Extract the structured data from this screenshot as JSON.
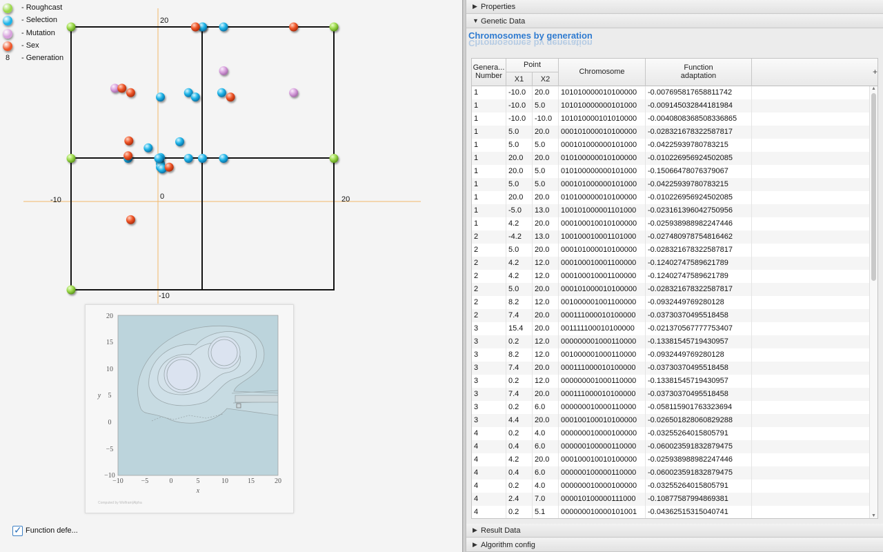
{
  "legend": [
    {
      "label": "- Roughcast",
      "swatch": "roughcast"
    },
    {
      "label": "- Selection",
      "swatch": "selection"
    },
    {
      "label": "- Mutation",
      "swatch": "mutation"
    },
    {
      "label": "- Sex",
      "swatch": "sex"
    },
    {
      "label": "- Generation",
      "number": "8"
    }
  ],
  "colors": {
    "roughcast": "#9bd84a",
    "selection": "#1eb4e8",
    "mutation": "#d7a0dc",
    "sex": "#ee5528",
    "axis": "#f2b86a",
    "grid": "#111111"
  },
  "plot": {
    "axis_labels": {
      "top": "20",
      "left": "-10",
      "origin": "0",
      "right": "20",
      "bottom": "-10"
    },
    "roughcast_points": [
      [
        -10,
        20
      ],
      [
        -10,
        5
      ],
      [
        -10,
        -10
      ],
      [
        20,
        5
      ],
      [
        20,
        20
      ]
    ],
    "selection_points": [
      [
        5,
        20
      ],
      [
        7.4,
        20
      ],
      [
        5,
        20
      ],
      [
        0.2,
        12
      ],
      [
        3.4,
        12.5
      ],
      [
        4.2,
        12
      ],
      [
        7.2,
        12.5
      ],
      [
        0.2,
        4.4
      ],
      [
        -1.2,
        6.2
      ],
      [
        2.4,
        6.9
      ],
      [
        0.2,
        5.1
      ],
      [
        0.2,
        4
      ],
      [
        -3.5,
        5
      ],
      [
        3.4,
        5
      ],
      [
        5,
        5
      ],
      [
        7.4,
        5
      ],
      [
        0.4,
        3.8
      ],
      [
        0,
        5
      ]
    ],
    "mutation_points": [
      [
        7.4,
        15
      ],
      [
        -5,
        13
      ],
      [
        15.4,
        12.5
      ]
    ],
    "sex_points": [
      [
        4.2,
        20
      ],
      [
        15.4,
        20
      ],
      [
        -4.2,
        13
      ],
      [
        -3.2,
        12.5
      ],
      [
        8.2,
        12
      ],
      [
        -3.4,
        7
      ],
      [
        -3.5,
        5.3
      ],
      [
        1.2,
        4
      ],
      [
        -3.2,
        -2
      ]
    ]
  },
  "contour": {
    "ticks_y": [
      "20",
      "15",
      "10",
      "5",
      "0",
      "−5",
      "−10"
    ],
    "ticks_x": [
      "−10",
      "−5",
      "0",
      "5",
      "10",
      "15",
      "20"
    ],
    "xlabel": "x",
    "ylabel": "y",
    "footnote": "Computed by Wolfram|Alpha"
  },
  "checkbox": {
    "label": "Function defe...",
    "checked": true
  },
  "sections": {
    "properties": "Properties",
    "genetic_data": "Genetic Data",
    "result_data": "Result Data",
    "algorithm_config": "Algorithm config"
  },
  "chart_title": "Chromosomes by generation",
  "table": {
    "headers": {
      "generation": [
        "Genera...",
        "Number"
      ],
      "point": "Point",
      "x1": "X1",
      "x2": "X2",
      "chromosome": "Chromosome",
      "function": [
        "Function",
        "adaptation"
      ]
    },
    "rows": [
      [
        "1",
        "-10.0",
        "20.0",
        "101010000010100000",
        "-0.007695817658811742"
      ],
      [
        "1",
        "-10.0",
        "5.0",
        "101010000000101000",
        "-0.009145032844181984"
      ],
      [
        "1",
        "-10.0",
        "-10.0",
        "101010000101010000",
        "-0.0040808368508336865"
      ],
      [
        "1",
        "5.0",
        "20.0",
        "000101000010100000",
        "-0.028321678322587817"
      ],
      [
        "1",
        "5.0",
        "5.0",
        "000101000000101000",
        "-0.04225939780783215"
      ],
      [
        "1",
        "20.0",
        "20.0",
        "010100000010100000",
        "-0.010226956924502085"
      ],
      [
        "1",
        "20.0",
        "5.0",
        "010100000000101000",
        "-0.15066478076379067"
      ],
      [
        "1",
        "5.0",
        "5.0",
        "000101000000101000",
        "-0.04225939780783215"
      ],
      [
        "1",
        "20.0",
        "20.0",
        "010100000010100000",
        "-0.010226956924502085"
      ],
      [
        "1",
        "-5.0",
        "13.0",
        "100101000001101000",
        "-0.023161396042750956"
      ],
      [
        "1",
        "4.2",
        "20.0",
        "000100010010100000",
        "-0.025938988982247446"
      ],
      [
        "2",
        "-4.2",
        "13.0",
        "100100010001101000",
        "-0.027480978754816462"
      ],
      [
        "2",
        "5.0",
        "20.0",
        "000101000010100000",
        "-0.028321678322587817"
      ],
      [
        "2",
        "4.2",
        "12.0",
        "000100010001100000",
        "-0.12402747589621789"
      ],
      [
        "2",
        "4.2",
        "12.0",
        "000100010001100000",
        "-0.12402747589621789"
      ],
      [
        "2",
        "5.0",
        "20.0",
        "000101000010100000",
        "-0.028321678322587817"
      ],
      [
        "2",
        "8.2",
        "12.0",
        "001000001001100000",
        "-0.0932449769280128"
      ],
      [
        "2",
        "7.4",
        "20.0",
        "000111000010100000",
        "-0.03730370495518458"
      ],
      [
        "3",
        "15.4",
        "20.0",
        "001111100010100000",
        "-0.021370567777753407"
      ],
      [
        "3",
        "0.2",
        "12.0",
        "000000001000110000",
        "-0.13381545719430957"
      ],
      [
        "3",
        "8.2",
        "12.0",
        "001000001000110000",
        "-0.0932449769280128"
      ],
      [
        "3",
        "7.4",
        "20.0",
        "000111000010100000",
        "-0.03730370495518458"
      ],
      [
        "3",
        "0.2",
        "12.0",
        "000000001000110000",
        "-0.13381545719430957"
      ],
      [
        "3",
        "7.4",
        "20.0",
        "000111000010100000",
        "-0.03730370495518458"
      ],
      [
        "3",
        "0.2",
        "6.0",
        "000000010000110000",
        "-0.058115901763323694"
      ],
      [
        "3",
        "4.4",
        "20.0",
        "000100100010100000",
        "-0.026501828060829288"
      ],
      [
        "4",
        "0.2",
        "4.0",
        "000000010000100000",
        "-0.03255264015805791"
      ],
      [
        "4",
        "0.4",
        "6.0",
        "000000100000110000",
        "-0.060023591832879475"
      ],
      [
        "4",
        "4.2",
        "20.0",
        "000100010010100000",
        "-0.025938988982247446"
      ],
      [
        "4",
        "0.4",
        "6.0",
        "000000100000110000",
        "-0.060023591832879475"
      ],
      [
        "4",
        "0.2",
        "4.0",
        "000000010000100000",
        "-0.03255264015805791"
      ],
      [
        "4",
        "2.4",
        "7.0",
        "000010100000111000",
        "-0.10877587994869381"
      ],
      [
        "4",
        "0.2",
        "5.1",
        "000000010000101001",
        "-0.04362515315040741"
      ]
    ]
  }
}
